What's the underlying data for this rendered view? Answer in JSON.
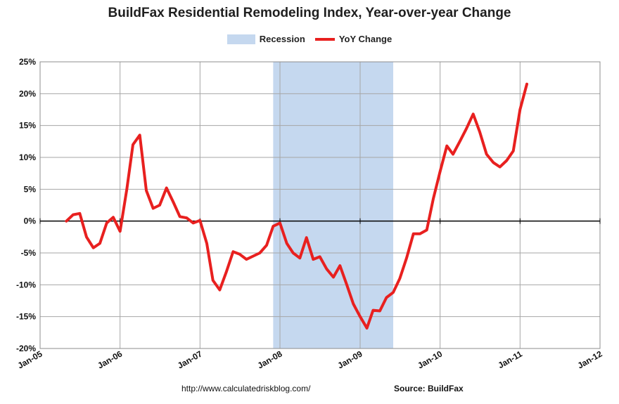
{
  "chart_data": {
    "type": "line",
    "title": "BuildFax Residential Remodeling Index, Year-over-year Change",
    "legend_position": "top-center",
    "colors": {
      "recession": "#c5d8ef",
      "line": "#e8201f",
      "grid": "#a6a6a6",
      "zero_line": "#000000"
    },
    "legend": {
      "recession_label": "Recession",
      "series_label": "YoY Change"
    },
    "x_axis": {
      "type": "date",
      "range": [
        "2005-01-01",
        "2012-01-01"
      ],
      "ticks": [
        {
          "date": "2005-01-01",
          "label": "Jan-05"
        },
        {
          "date": "2006-01-01",
          "label": "Jan-06"
        },
        {
          "date": "2007-01-01",
          "label": "Jan-07"
        },
        {
          "date": "2008-01-01",
          "label": "Jan-08"
        },
        {
          "date": "2009-01-01",
          "label": "Jan-09"
        },
        {
          "date": "2010-01-01",
          "label": "Jan-10"
        },
        {
          "date": "2011-01-01",
          "label": "Jan-11"
        },
        {
          "date": "2012-01-01",
          "label": "Jan-12"
        }
      ]
    },
    "y_axis": {
      "range": [
        -20,
        25
      ],
      "ticks": [
        {
          "value": 25,
          "label": "25%"
        },
        {
          "value": 20,
          "label": "20%"
        },
        {
          "value": 15,
          "label": "15%"
        },
        {
          "value": 10,
          "label": "10%"
        },
        {
          "value": 5,
          "label": "5%"
        },
        {
          "value": 0,
          "label": "0%"
        },
        {
          "value": -5,
          "label": "-5%"
        },
        {
          "value": -10,
          "label": "-10%"
        },
        {
          "value": -15,
          "label": "-15%"
        },
        {
          "value": -20,
          "label": "-20%"
        }
      ]
    },
    "grid": true,
    "recession": {
      "start": "2007-12-01",
      "end": "2009-06-01"
    },
    "series": [
      {
        "name": "YoY Change",
        "points": [
          [
            "2005-05-01",
            0.0
          ],
          [
            "2005-06-01",
            1.0
          ],
          [
            "2005-07-01",
            1.2
          ],
          [
            "2005-08-01",
            -2.5
          ],
          [
            "2005-09-01",
            -4.2
          ],
          [
            "2005-10-01",
            -3.5
          ],
          [
            "2005-11-01",
            -0.3
          ],
          [
            "2005-12-01",
            0.6
          ],
          [
            "2006-01-01",
            -1.6
          ],
          [
            "2006-02-01",
            5.0
          ],
          [
            "2006-03-01",
            12.0
          ],
          [
            "2006-04-01",
            13.5
          ],
          [
            "2006-05-01",
            4.8
          ],
          [
            "2006-06-01",
            2.0
          ],
          [
            "2006-07-01",
            2.5
          ],
          [
            "2006-08-01",
            5.2
          ],
          [
            "2006-09-01",
            3.0
          ],
          [
            "2006-10-01",
            0.7
          ],
          [
            "2006-11-01",
            0.5
          ],
          [
            "2006-12-01",
            -0.3
          ],
          [
            "2007-01-01",
            0.1
          ],
          [
            "2007-02-01",
            -3.5
          ],
          [
            "2007-03-01",
            -9.3
          ],
          [
            "2007-04-01",
            -10.8
          ],
          [
            "2007-05-01",
            -8.0
          ],
          [
            "2007-06-01",
            -4.8
          ],
          [
            "2007-07-01",
            -5.2
          ],
          [
            "2007-08-01",
            -6.0
          ],
          [
            "2007-09-01",
            -5.5
          ],
          [
            "2007-10-01",
            -5.0
          ],
          [
            "2007-11-01",
            -3.8
          ],
          [
            "2007-12-01",
            -0.8
          ],
          [
            "2008-01-01",
            -0.3
          ],
          [
            "2008-02-01",
            -3.5
          ],
          [
            "2008-03-01",
            -5.0
          ],
          [
            "2008-04-01",
            -5.8
          ],
          [
            "2008-05-01",
            -2.6
          ],
          [
            "2008-06-01",
            -6.0
          ],
          [
            "2008-07-01",
            -5.6
          ],
          [
            "2008-08-01",
            -7.5
          ],
          [
            "2008-09-01",
            -8.8
          ],
          [
            "2008-10-01",
            -7.0
          ],
          [
            "2008-11-01",
            -10.0
          ],
          [
            "2008-12-01",
            -13.0
          ],
          [
            "2009-01-01",
            -15.0
          ],
          [
            "2009-02-01",
            -16.8
          ],
          [
            "2009-03-01",
            -14.0
          ],
          [
            "2009-04-01",
            -14.1
          ],
          [
            "2009-05-01",
            -12.0
          ],
          [
            "2009-06-01",
            -11.2
          ],
          [
            "2009-07-01",
            -9.0
          ],
          [
            "2009-08-01",
            -5.8
          ],
          [
            "2009-09-01",
            -2.0
          ],
          [
            "2009-10-01",
            -2.0
          ],
          [
            "2009-11-01",
            -1.4
          ],
          [
            "2009-12-01",
            3.5
          ],
          [
            "2010-01-01",
            7.8
          ],
          [
            "2010-02-01",
            11.8
          ],
          [
            "2010-03-01",
            10.5
          ],
          [
            "2010-04-01",
            12.5
          ],
          [
            "2010-05-01",
            14.5
          ],
          [
            "2010-06-01",
            16.8
          ],
          [
            "2010-07-01",
            14.0
          ],
          [
            "2010-08-01",
            10.5
          ],
          [
            "2010-09-01",
            9.2
          ],
          [
            "2010-10-01",
            8.5
          ],
          [
            "2010-11-01",
            9.5
          ],
          [
            "2010-12-01",
            11.0
          ],
          [
            "2011-01-01",
            17.5
          ],
          [
            "2011-02-01",
            21.5
          ]
        ]
      }
    ]
  },
  "footer": {
    "source_url": "http://www.calculatedriskblog.com/",
    "source_credit": "Source: BuildFax"
  }
}
